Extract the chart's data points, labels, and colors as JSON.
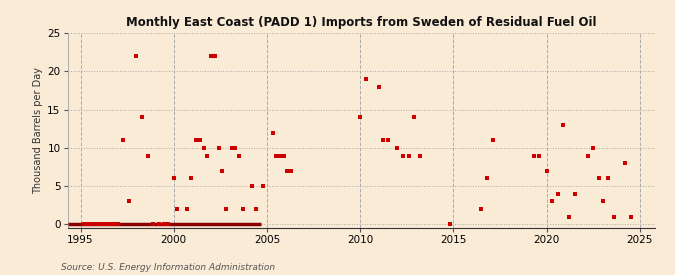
{
  "title": "Monthly East Coast (PADD 1) Imports from Sweden of Residual Fuel Oil",
  "ylabel": "Thousand Barrels per Day",
  "source": "Source: U.S. Energy Information Administration",
  "background_color": "#faebd7",
  "plot_background_color": "#faebd7",
  "marker_color": "#cc0000",
  "zero_line_color": "#8b0000",
  "xlim": [
    1994.3,
    2025.8
  ],
  "ylim": [
    -0.5,
    25
  ],
  "yticks": [
    0,
    5,
    10,
    15,
    20,
    25
  ],
  "xticks": [
    1995,
    2000,
    2005,
    2010,
    2015,
    2020,
    2025
  ],
  "scatter_x": [
    1995.2,
    1995.4,
    1995.6,
    1995.8,
    1996.0,
    1996.2,
    1996.4,
    1996.6,
    1996.8,
    1997.0,
    1997.3,
    1997.6,
    1998.0,
    1998.3,
    1998.6,
    1998.9,
    1999.2,
    1999.5,
    1999.7,
    2000.0,
    2000.2,
    2000.7,
    2000.9,
    2001.2,
    2001.4,
    2001.6,
    2001.8,
    2002.0,
    2002.2,
    2002.4,
    2002.6,
    2002.8,
    2003.1,
    2003.3,
    2003.5,
    2003.7,
    2004.2,
    2004.4,
    2004.8,
    2005.3,
    2005.5,
    2005.7,
    2005.9,
    2006.1,
    2006.3,
    2010.0,
    2010.3,
    2011.0,
    2011.2,
    2011.5,
    2012.0,
    2012.3,
    2012.6,
    2012.9,
    2013.2,
    2014.8,
    2016.5,
    2016.8,
    2017.1,
    2019.3,
    2019.6,
    2020.0,
    2020.3,
    2020.6,
    2020.9,
    2021.2,
    2021.5,
    2022.2,
    2022.5,
    2022.8,
    2023.0,
    2023.3,
    2023.6,
    2024.2,
    2024.5
  ],
  "scatter_y": [
    0,
    0,
    0,
    0,
    0,
    0,
    0,
    0,
    0,
    0,
    11,
    3,
    22,
    14,
    9,
    0,
    0,
    0,
    0,
    6,
    2,
    2,
    6,
    11,
    11,
    10,
    9,
    22,
    22,
    10,
    7,
    2,
    10,
    10,
    9,
    2,
    5,
    2,
    5,
    12,
    9,
    9,
    9,
    7,
    7,
    14,
    19,
    18,
    11,
    11,
    10,
    9,
    9,
    14,
    9,
    0,
    2,
    6,
    11,
    9,
    9,
    7,
    3,
    4,
    13,
    1,
    4,
    9,
    10,
    6,
    3,
    6,
    1,
    8,
    1
  ],
  "zero_line_segments": [
    [
      1994.3,
      1994.8
    ],
    [
      1995.0,
      1996.9
    ],
    [
      1999.1,
      1999.9
    ],
    [
      2000.3,
      2000.5
    ],
    [
      2003.9,
      2004.6
    ]
  ]
}
